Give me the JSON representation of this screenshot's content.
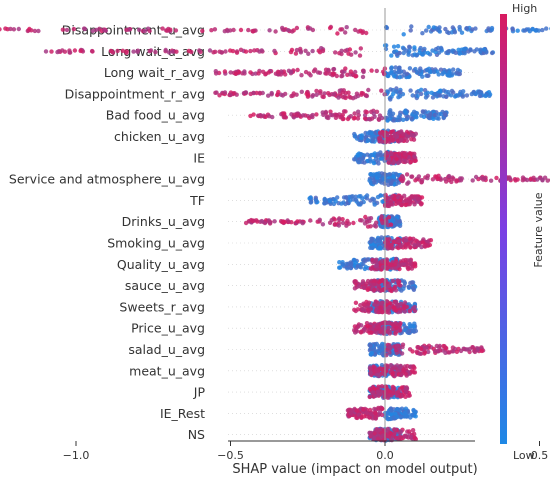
{
  "chart_data": {
    "type": "scatter",
    "xlabel": "SHAP value (impact on model output)",
    "xlim": [
      -1.35,
      0.8
    ],
    "xticks": [
      -1.0,
      -0.5,
      0.0,
      0.5
    ],
    "xtick_labels": [
      "−1.0",
      "−0.5",
      "0.0",
      "0.5"
    ],
    "colorbar": {
      "label": "Feature value",
      "high_label": "High",
      "low_label": "Low",
      "low_color": "#1E88E5",
      "high_color": "#D81B60"
    },
    "features": [
      {
        "name": "Disappointment_u_avg",
        "high_range": [
          -1.3,
          -0.05
        ],
        "low_range": [
          0.0,
          0.7
        ]
      },
      {
        "name": "Long wait_u_avg",
        "high_range": [
          -1.1,
          -0.05
        ],
        "low_range": [
          0.0,
          0.35
        ]
      },
      {
        "name": "Long wait_r_avg",
        "high_range": [
          -0.55,
          0.0
        ],
        "low_range": [
          0.0,
          0.25
        ]
      },
      {
        "name": "Disappointment_r_avg",
        "high_range": [
          -0.55,
          0.0
        ],
        "low_range": [
          0.0,
          0.35
        ]
      },
      {
        "name": "Bad food_u_avg",
        "high_range": [
          -0.45,
          0.0
        ],
        "low_range": [
          0.0,
          0.2
        ]
      },
      {
        "name": "chicken_u_avg",
        "high_range": [
          -0.02,
          0.1
        ],
        "low_range": [
          -0.1,
          0.05
        ]
      },
      {
        "name": "IE",
        "high_range": [
          0.0,
          0.1
        ],
        "low_range": [
          -0.1,
          0.05
        ]
      },
      {
        "name": "Service and atmosphere_u_avg",
        "high_range": [
          0.05,
          0.55
        ],
        "low_range": [
          -0.05,
          0.05
        ]
      },
      {
        "name": "TF",
        "high_range": [
          0.0,
          0.12
        ],
        "low_range": [
          -0.25,
          0.05
        ]
      },
      {
        "name": "Drinks_u_avg",
        "high_range": [
          -0.45,
          0.02
        ],
        "low_range": [
          -0.02,
          0.05
        ]
      },
      {
        "name": "Smoking_u_avg",
        "high_range": [
          0.0,
          0.15
        ],
        "low_range": [
          -0.05,
          0.05
        ]
      },
      {
        "name": "Quality_u_avg",
        "high_range": [
          -0.05,
          0.1
        ],
        "low_range": [
          -0.15,
          0.05
        ]
      },
      {
        "name": "sauce_u_avg",
        "high_range": [
          -0.1,
          0.05
        ],
        "low_range": [
          -0.05,
          0.1
        ]
      },
      {
        "name": "Sweets_r_avg",
        "high_range": [
          -0.1,
          0.1
        ],
        "low_range": [
          -0.05,
          0.1
        ]
      },
      {
        "name": "Price_u_avg",
        "high_range": [
          -0.1,
          0.05
        ],
        "low_range": [
          -0.05,
          0.1
        ]
      },
      {
        "name": "salad_u_avg",
        "high_range": [
          0.0,
          0.32
        ],
        "low_range": [
          -0.05,
          0.05
        ]
      },
      {
        "name": "meat_u_avg",
        "high_range": [
          -0.05,
          0.1
        ],
        "low_range": [
          -0.05,
          0.05
        ]
      },
      {
        "name": "JP",
        "high_range": [
          -0.05,
          0.08
        ],
        "low_range": [
          -0.05,
          0.05
        ]
      },
      {
        "name": "IE_Rest",
        "high_range": [
          -0.12,
          0.0
        ],
        "low_range": [
          0.0,
          0.1
        ]
      },
      {
        "name": "NS",
        "high_range": [
          -0.05,
          0.1
        ],
        "low_range": [
          -0.05,
          0.05
        ]
      }
    ]
  }
}
